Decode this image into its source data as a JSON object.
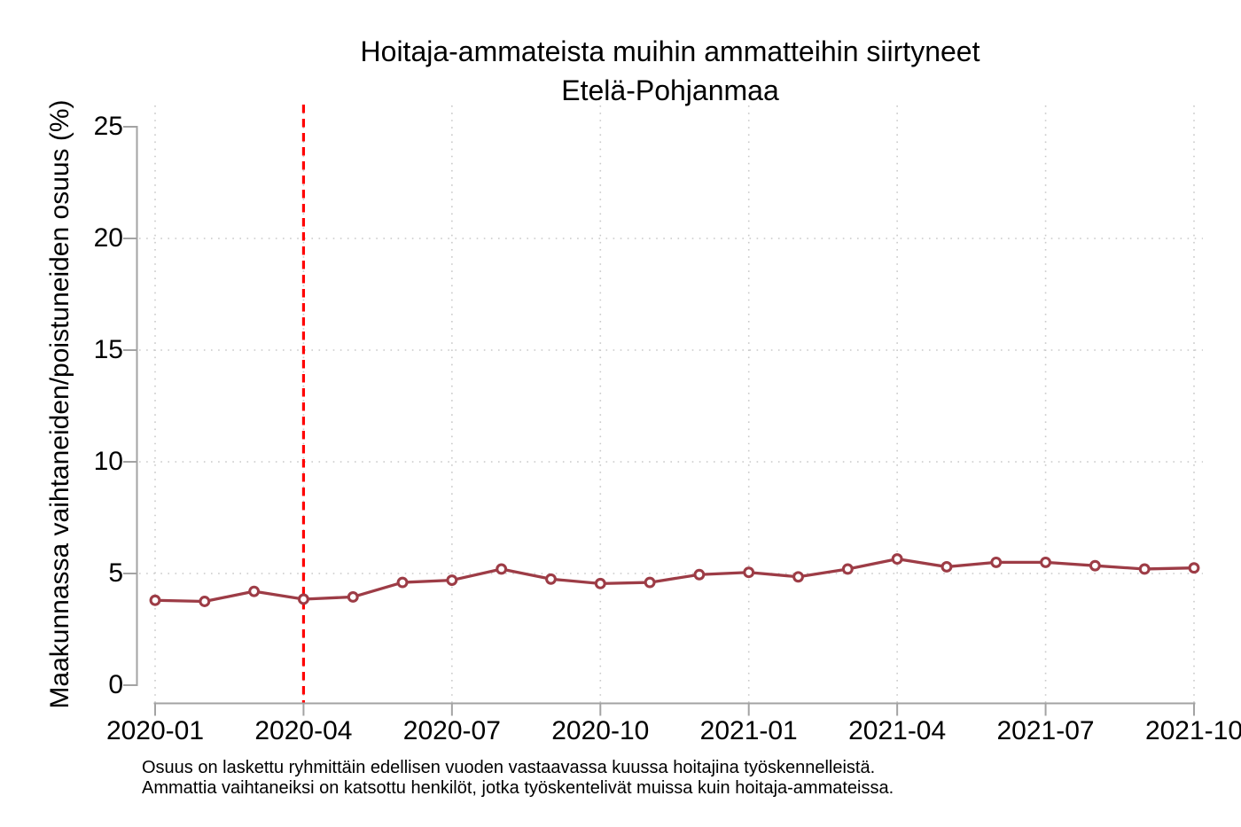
{
  "chart_data": {
    "type": "line",
    "title": "Hoitaja-ammateista muihin ammatteihin siirtyneet",
    "subtitle": "Etelä-Pohjanmaa",
    "ylabel": "Maakunnassa vaihtaneiden/poistuneiden osuus (%)",
    "xlabel": "",
    "x": [
      "2020-01",
      "2020-02",
      "2020-03",
      "2020-04",
      "2020-05",
      "2020-06",
      "2020-07",
      "2020-08",
      "2020-09",
      "2020-10",
      "2020-11",
      "2020-12",
      "2021-01",
      "2021-02",
      "2021-03",
      "2021-04",
      "2021-05",
      "2021-06",
      "2021-07",
      "2021-08",
      "2021-09",
      "2021-10"
    ],
    "series": [
      {
        "name": "Etelä-Pohjanmaa",
        "values": [
          3.8,
          3.75,
          4.2,
          3.85,
          3.95,
          4.6,
          4.7,
          5.2,
          4.75,
          4.55,
          4.6,
          4.95,
          5.05,
          4.85,
          5.2,
          5.65,
          5.3,
          5.5,
          5.5,
          5.35,
          5.2,
          5.25
        ]
      }
    ],
    "ylim": [
      0,
      25
    ],
    "yticks": [
      0,
      5,
      10,
      15,
      20,
      25
    ],
    "grid_yticks": [
      5,
      10,
      15,
      20
    ],
    "xtick_labels": [
      "2020-01",
      "2020-04",
      "2020-07",
      "2020-10",
      "2021-01",
      "2021-04",
      "2021-07",
      "2021-10"
    ],
    "grid": "dotted",
    "legend": "none",
    "marker": "open-circle",
    "reference_vline_x": "2020-04",
    "notes": [
      "Osuus on laskettu ryhmittäin edellisen vuoden vastaavassa kuussa hoitajina työskennelleistä.",
      "Ammattia vaihtaneiksi on katsottu henkilöt, jotka työskentelivät muissa kuin hoitaja-ammateissa."
    ],
    "colors": {
      "line": "#9d3c46",
      "marker_fill": "#ffffff",
      "reference_line": "#ff0000",
      "axis": "#a3a3a3",
      "grid": "#c9c9c9",
      "text": "#000000",
      "background": "#ffffff"
    }
  }
}
